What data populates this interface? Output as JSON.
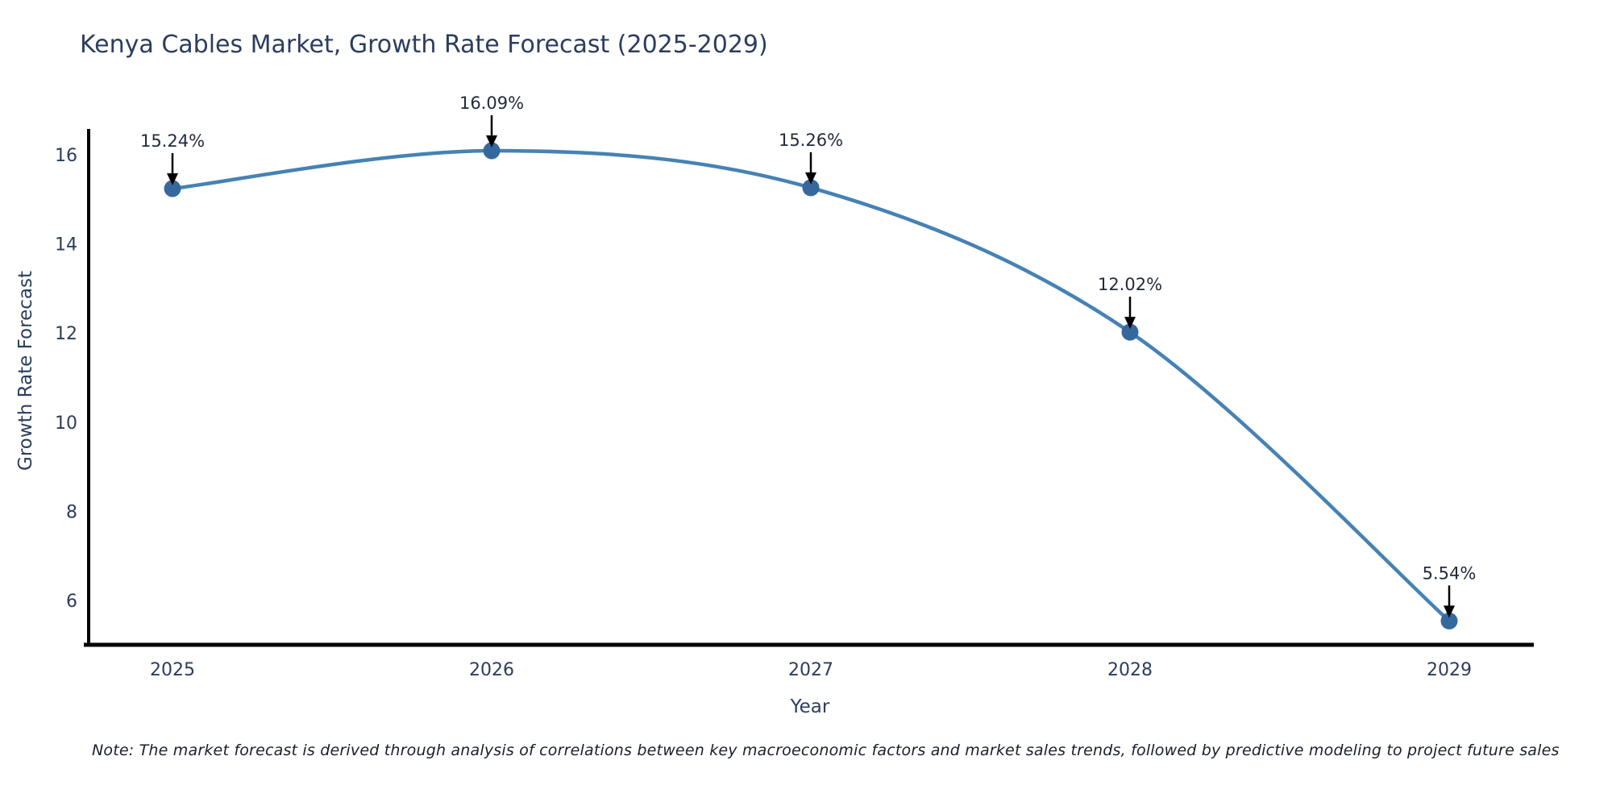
{
  "chart_data": {
    "type": "line",
    "title": "Kenya Cables Market, Growth Rate Forecast (2025-2029)",
    "xlabel": "Year",
    "ylabel": "Growth Rate Forecast",
    "categories": [
      "2025",
      "2026",
      "2027",
      "2028",
      "2029"
    ],
    "series": [
      {
        "name": "Growth Rate Forecast",
        "values": [
          15.24,
          16.09,
          15.26,
          12.02,
          5.54
        ]
      }
    ],
    "point_labels": [
      "15.24%",
      "16.09%",
      "15.26%",
      "12.02%",
      "5.54%"
    ],
    "yticks": [
      6,
      8,
      10,
      12,
      14,
      16
    ],
    "ylim": [
      5.0,
      16.6
    ],
    "grid": false,
    "legend": "none",
    "smooth": true,
    "marker_style": "circle",
    "annotation_style": "text-with-down-arrow",
    "colors": {
      "line": "#4682b4",
      "marker": "#35699e",
      "axis": "#000000",
      "arrow": "#000000",
      "tick_text": "#2c3d5d",
      "annotation_text": "#232b3b"
    }
  },
  "footer": {
    "note": "Note: The market forecast is derived through analysis of correlations between key macroeconomic factors and market sales trends, followed by predictive modeling to project future sales"
  }
}
